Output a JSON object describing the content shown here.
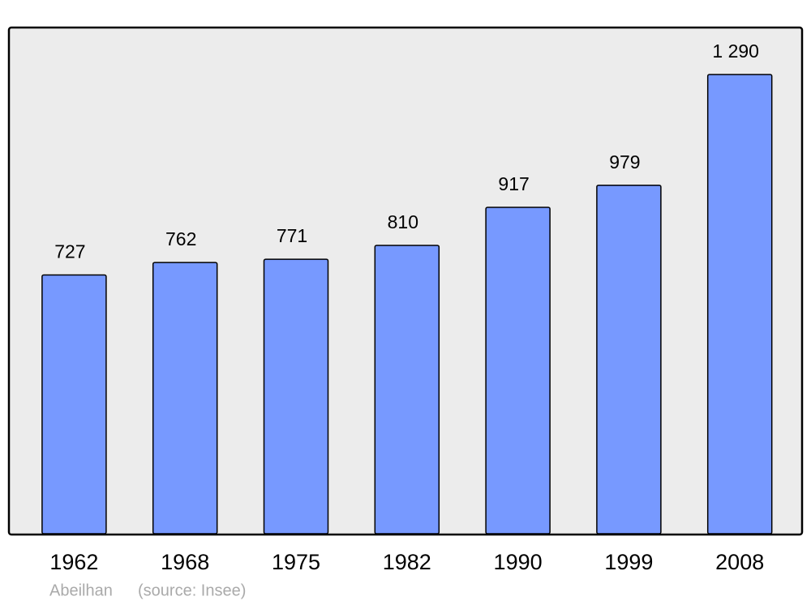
{
  "chart_data": {
    "type": "bar",
    "categories": [
      "1962",
      "1968",
      "1975",
      "1982",
      "1990",
      "1999",
      "2008"
    ],
    "values": [
      727,
      762,
      771,
      810,
      917,
      979,
      1290
    ],
    "value_labels": [
      "727",
      "762",
      "771",
      "810",
      "917",
      "979",
      "1 290"
    ],
    "color": "#7799ff",
    "place": "Abeilhan",
    "source": "(source: Insee)"
  }
}
